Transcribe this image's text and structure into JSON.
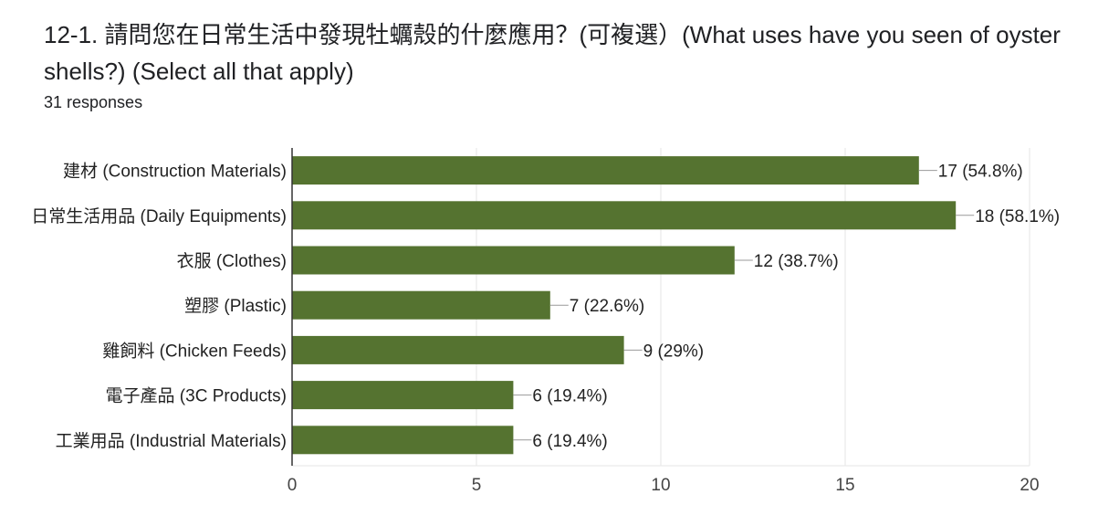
{
  "question": {
    "title": "12-1. 請問您在日常生活中發現牡蠣殼的什麼應用？(可複選）(What uses have you seen of oyster shells?) (Select all that apply)",
    "responses": "31 responses"
  },
  "colors": {
    "bar": "#557330",
    "grid": "#e6e6e6",
    "axis": "#333333",
    "leader": "#999999"
  },
  "chart_data": {
    "type": "bar",
    "orientation": "horizontal",
    "title": "12-1. 請問您在日常生活中發現牡蠣殼的什麼應用？(可複選）(What uses have you seen of oyster shells?) (Select all that apply)",
    "xlabel": "",
    "ylabel": "",
    "categories": [
      "建材 (Construction Materials)",
      "日常生活用品 (Daily Equipments)",
      "衣服 (Clothes)",
      "塑膠 (Plastic)",
      "雞飼料 (Chicken Feeds)",
      "電子產品 (3C Products)",
      "工業用品 (Industrial Materials)"
    ],
    "values": [
      17,
      18,
      12,
      7,
      9,
      6,
      6
    ],
    "value_labels": [
      "17 (54.8%)",
      "18 (58.1%)",
      "12 (38.7%)",
      "7 (22.6%)",
      "9 (29%)",
      "6 (19.4%)",
      "6 (19.4%)"
    ],
    "xlim": [
      0,
      20
    ],
    "xticks": [
      0,
      5,
      10,
      15,
      20
    ],
    "grid": true,
    "legend": "none"
  }
}
